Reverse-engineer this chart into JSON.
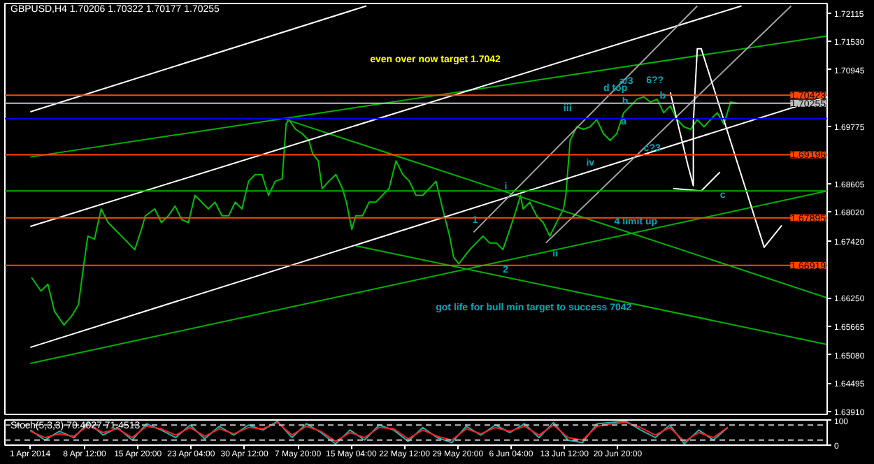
{
  "chart_data": [
    {
      "type": "line",
      "title": "GBPUSD,H4 1.70206 1.70322 1.70177 1.70255",
      "xlim": [
        "2014-03-28T12:00",
        "2014-07-19T16:00"
      ],
      "ylim": [
        1.6385,
        1.7231
      ],
      "yticks": [
        1.72115,
        {
          "value": 1.7153,
          "label": "1.71530"
        },
        1.70945,
        1.69775,
        1.68605,
        {
          "value": 1.6802,
          "label": "1.68020"
        },
        {
          "value": 1.6742,
          "label": "1.67420"
        },
        {
          "value": 1.6625,
          "label": "1.66250"
        },
        1.65665,
        {
          "value": 1.6508,
          "label": "1.65080"
        },
        1.64495,
        {
          "value": 1.6391,
          "label": "1.63910"
        }
      ],
      "tick_labels": "y",
      "grid": false,
      "series": [
        {
          "color": "#00c000",
          "x": [
            "2014-04-01T04:00",
            "2014-04-02T11:00",
            "2014-04-03T10:00",
            "2014-04-04T08:00",
            "2014-04-05T15:00",
            "2014-04-06T17:00",
            "2014-04-07T15:00",
            "2014-04-08T09:00",
            "2014-04-08T22:00",
            "2014-04-09T20:00",
            "2014-04-10T18:00",
            "2014-04-11T17:00",
            "2014-04-12T15:00",
            "2014-04-13T13:00",
            "2014-04-14T11:00",
            "2014-04-15T09:00",
            "2014-04-16T07:00",
            "2014-04-16T20:00",
            "2014-04-18T03:00",
            "2014-04-19T01:00",
            "2014-04-20T00:00",
            "2014-04-20T22:00",
            "2014-04-21T20:00",
            "2014-04-22T18:00",
            "2014-04-23T16:00",
            "2014-04-24T14:00",
            "2014-04-25T12:00",
            "2014-04-26T10:00",
            "2014-04-27T09:00",
            "2014-04-28T07:00",
            "2014-04-29T05:00",
            "2014-04-30T03:00",
            "2014-05-01T01:00",
            "2014-05-01T23:00",
            "2014-05-02T21:00",
            "2014-05-03T19:00",
            "2014-05-04T17:00",
            "2014-05-05T16:00",
            "2014-05-06T05:00",
            "2014-05-06T14:00",
            "2014-05-07T12:00",
            "2014-05-08T10:00",
            "2014-05-09T08:00",
            "2014-05-09T21:00",
            "2014-05-10T15:00",
            "2014-05-11T04:00",
            "2014-05-12T02:00",
            "2014-05-13T01:00",
            "2014-05-13T23:00",
            "2014-05-14T12:00",
            "2014-05-15T06:00",
            "2014-05-15T19:00",
            "2014-05-16T17:00",
            "2014-05-17T15:00",
            "2014-05-18T13:00",
            "2014-05-19T11:00",
            "2014-05-20T09:00",
            "2014-05-21T08:00",
            "2014-05-22T06:00",
            "2014-05-23T04:00",
            "2014-05-24T02:00",
            "2014-05-25T00:00",
            "2014-05-25T22:00",
            "2014-05-26T20:00",
            "2014-05-27T18:00",
            "2014-05-28T17:00",
            "2014-05-29T06:00",
            "2014-05-29T23:00",
            "2014-05-31T11:00",
            "2014-06-01T09:00",
            "2014-06-02T07:00",
            "2014-06-03T05:00",
            "2014-06-04T03:00",
            "2014-06-05T01:00",
            "2014-06-06T00:00",
            "2014-06-06T22:00",
            "2014-06-07T11:00",
            "2014-06-07T20:00",
            "2014-06-08T18:00",
            "2014-06-09T16:00",
            "2014-06-10T14:00",
            "2014-06-11T12:00",
            "2014-06-12T10:00",
            "2014-06-13T09:00",
            "2014-06-13T17:00",
            "2014-06-14T07:00",
            "2014-06-15T05:00",
            "2014-06-16T03:00",
            "2014-06-17T01:00",
            "2014-06-17T23:00",
            "2014-06-18T21:00",
            "2014-06-19T19:00",
            "2014-06-20T17:00",
            "2014-06-21T16:00",
            "2014-06-22T14:00",
            "2014-06-23T12:00",
            "2014-06-24T10:00",
            "2014-06-25T08:00",
            "2014-06-26T06:00",
            "2014-06-27T04:00",
            "2014-06-28T02:00",
            "2014-06-29T00:00",
            "2014-06-29T23:00",
            "2014-06-30T21:00",
            "2014-07-01T19:00",
            "2014-07-02T17:00",
            "2014-07-03T15:00",
            "2014-07-04T13:00",
            "2014-07-05T11:00",
            "2014-07-06T09:00",
            "2014-07-07T08:00"
          ],
          "values": [
            1.6667,
            1.6639,
            1.6653,
            1.6597,
            1.6569,
            1.6588,
            1.6611,
            1.6695,
            1.6752,
            1.6746,
            1.6808,
            1.678,
            1.6766,
            1.6752,
            1.6738,
            1.6724,
            1.6766,
            1.6794,
            1.6808,
            1.678,
            1.6794,
            1.6814,
            1.6786,
            1.678,
            1.6836,
            1.6822,
            1.6808,
            1.6822,
            1.6794,
            1.6794,
            1.6822,
            1.6808,
            1.6865,
            1.6879,
            1.6879,
            1.6836,
            1.6865,
            1.687,
            1.6983,
            1.6992,
            1.6972,
            1.6963,
            1.6949,
            1.6921,
            1.6907,
            1.685,
            1.6865,
            1.6879,
            1.685,
            1.6822,
            1.6766,
            1.6794,
            1.6794,
            1.6822,
            1.6822,
            1.6836,
            1.685,
            1.6907,
            1.6879,
            1.6865,
            1.6836,
            1.6836,
            1.685,
            1.6865,
            1.6808,
            1.6752,
            1.6709,
            1.6695,
            1.6724,
            1.6738,
            1.6752,
            1.6738,
            1.6738,
            1.6724,
            1.6766,
            1.6808,
            1.6836,
            1.6808,
            1.6822,
            1.6794,
            1.678,
            1.6752,
            1.678,
            1.6808,
            1.6836,
            1.6949,
            1.6977,
            1.6972,
            1.6977,
            1.6992,
            1.6963,
            1.6949,
            1.6963,
            1.7006,
            1.702,
            1.7034,
            1.7039,
            1.7028,
            1.7034,
            1.7006,
            1.702,
            1.6992,
            1.6977,
            1.6972,
            1.6992,
            1.6977,
            1.6992,
            1.7006,
            1.6983,
            1.7028,
            1.7025
          ]
        },
        {
          "color": "#00b000",
          "x": [
            "2014-04-01T00:00",
            "2014-07-19T16:00"
          ],
          "values": [
            1.6915,
            1.7164
          ]
        },
        {
          "color": "#00b000",
          "x": [
            "2014-04-01T00:00",
            "2014-07-19T16:00"
          ],
          "values": [
            1.649,
            1.6845
          ]
        },
        {
          "color": "#00b000",
          "x": [
            "2014-05-06T05:00",
            "2014-07-19T16:00"
          ],
          "values": [
            1.6992,
            1.6625
          ]
        },
        {
          "color": "#00b000",
          "x": [
            "2014-05-15T19:00",
            "2014-07-19T16:00"
          ],
          "values": [
            1.6732,
            1.6529
          ]
        },
        {
          "color": "#ffffff",
          "x": [
            "2014-04-01T00:00",
            "2014-05-17T06:00"
          ],
          "values": [
            1.7008,
            1.7226
          ]
        },
        {
          "color": "#ffffff",
          "x": [
            "2014-04-01T00:00",
            "2014-07-07T21:00"
          ],
          "values": [
            1.6772,
            1.7226
          ]
        },
        {
          "color": "#ffffff",
          "x": [
            "2014-04-01T00:00",
            "2014-07-19T16:00"
          ],
          "values": [
            1.6523,
            1.7039
          ]
        },
        {
          "color": "#a0a0a0",
          "x": [
            "2014-06-01T00:00",
            "2014-07-01T19:00"
          ],
          "values": [
            1.676,
            1.7226
          ]
        },
        {
          "color": "#a0a0a0",
          "x": [
            "2014-06-10T23:00",
            "2014-07-14T17:00"
          ],
          "values": [
            1.6738,
            1.7226
          ]
        },
        {
          "color": "#ffffff",
          "x": [
            "2014-06-28T02:00",
            "2014-06-30T12:00",
            "2014-07-01T06:00",
            "2014-07-01T06:00",
            "2014-07-01T19:00",
            "2014-07-02T08:00",
            "2014-07-11T00:00",
            "2014-07-13T10:00"
          ],
          "values": [
            1.7048,
            1.6898,
            1.6856,
            1.6986,
            1.7138,
            1.7138,
            1.6729,
            1.6774
          ]
        },
        {
          "color": "#ffffff",
          "x": [
            "2014-06-28T11:00",
            "2014-07-02T08:00",
            "2014-07-04T22:00"
          ],
          "values": [
            1.685,
            1.6845,
            1.6884
          ]
        }
      ],
      "ref_lines": [
        {
          "axis": "y",
          "value": 1.70423,
          "label": "1.70423",
          "color": "#ff4500"
        },
        {
          "axis": "y",
          "value": 1.70255,
          "label": "1.70255",
          "color": "#c0c0c0"
        },
        {
          "axis": "y",
          "value": 1.6994,
          "label": null,
          "color": "#0000ff"
        },
        {
          "axis": "y",
          "value": 1.69196,
          "label": "1.69196",
          "color": "#ff4500"
        },
        {
          "axis": "y",
          "value": 1.6845,
          "label": null,
          "color": "#00b000"
        },
        {
          "axis": "y",
          "value": 1.67895,
          "label": "1.67895",
          "color": "#ff4500"
        },
        {
          "axis": "y",
          "value": 1.66919,
          "label": "1.66919",
          "color": "#ff4500"
        }
      ],
      "annotations": [
        "even over now target 1.7042",
        "got life for bull min target to success 7042",
        "iv",
        "6??",
        {
          "text": "4 limit up",
          "x": "2014-06-20T09:00",
          "y": 1.678
        },
        {
          "text": "iii",
          "x": "2014-06-13T09:00",
          "y": 1.7014
        },
        {
          "text": "ii",
          "x": "2014-06-11T21:00",
          "y": 1.6715
        },
        {
          "text": "i",
          "x": "2014-06-05T06:00",
          "y": 1.6853
        },
        {
          "text": "1",
          "x": "2014-05-31T20:00",
          "y": 1.6786
        },
        {
          "text": "2",
          "x": "2014-06-05T01:00",
          "y": 1.6684
        },
        {
          "text": "d top",
          "x": "2014-06-18T21:00",
          "y": 1.7056
        },
        {
          "text": "a/3",
          "x": "2014-06-21T02:00",
          "y": 1.707
        },
        {
          "text": "b",
          "x": "2014-06-21T11:00",
          "y": 1.7028
        },
        {
          "text": "a",
          "x": "2014-06-21T07:00",
          "y": 1.6986
        },
        {
          "text": "b",
          "x": "2014-06-26T15:00",
          "y": 1.7039
        },
        {
          "text": "c?3",
          "x": "2014-06-24T10:00",
          "y": 1.6932
        },
        {
          "text": "c",
          "x": "2014-07-04T22:00",
          "y": 1.6836
        }
      ]
    },
    {
      "type": "line",
      "title": "Stoch(5,3,3) 70.4027 71.4513",
      "xlim": [
        "2014-03-28T12:00",
        "2014-07-19T16:00"
      ],
      "ylim": [
        0,
        100
      ],
      "xticks": [
        {
          "value": "2014-04-01T00:00",
          "label": "1 Apr 2014"
        },
        {
          "value": "2014-04-08T12:00",
          "label": "8 Apr 12:00"
        },
        {
          "value": "2014-04-15T20:00",
          "label": "15 Apr 20:00"
        },
        {
          "value": "2014-04-23T04:00",
          "label": "23 Apr 04:00"
        },
        {
          "value": "2014-04-30T12:00",
          "label": "30 Apr 12:00"
        },
        {
          "value": "2014-05-07T20:00",
          "label": "7 May 20:00"
        },
        {
          "value": "2014-05-15T04:00",
          "label": "15 May 04:00"
        },
        {
          "value": "2014-05-22T12:00",
          "label": "22 May 12:00"
        },
        {
          "value": "2014-05-29T20:00",
          "label": "29 May 20:00"
        },
        {
          "value": "2014-06-06T04:00",
          "label": "6 Jun 04:00"
        },
        {
          "value": "2014-06-13T12:00",
          "label": "13 Jun 12:00"
        },
        {
          "value": "2014-06-20T20:00",
          "label": "20 Jun 20:00"
        }
      ],
      "yticks": [
        100,
        0
      ],
      "grid": false,
      "series": [
        {
          "color": "#20b2aa",
          "x": [
            "2014-04-01",
            "2014-04-03",
            "2014-04-05",
            "2014-04-07",
            "2014-04-09",
            "2014-04-11",
            "2014-04-13",
            "2014-04-15",
            "2014-04-17",
            "2014-04-19",
            "2014-04-21",
            "2014-04-23",
            "2014-04-25",
            "2014-04-27",
            "2014-04-29",
            "2014-05-01",
            "2014-05-03",
            "2014-05-05",
            "2014-05-07",
            "2014-05-09",
            "2014-05-11",
            "2014-05-13",
            "2014-05-15",
            "2014-05-17",
            "2014-05-19",
            "2014-05-21",
            "2014-05-23",
            "2014-05-25",
            "2014-05-27",
            "2014-05-29",
            "2014-05-31",
            "2014-06-02",
            "2014-06-04",
            "2014-06-06",
            "2014-06-08",
            "2014-06-10",
            "2014-06-12",
            "2014-06-14",
            "2014-06-16",
            "2014-06-18",
            "2014-06-20",
            "2014-06-22",
            "2014-06-24",
            "2014-06-26",
            "2014-06-28",
            "2014-06-30",
            "2014-07-02",
            "2014-07-04",
            "2014-07-06"
          ],
          "values": [
            60,
            20,
            55,
            30,
            90,
            40,
            70,
            20,
            85,
            60,
            30,
            80,
            25,
            75,
            40,
            80,
            60,
            95,
            30,
            85,
            50,
            5,
            60,
            20,
            80,
            60,
            15,
            70,
            30,
            10,
            75,
            40,
            80,
            50,
            85,
            30,
            90,
            20,
            10,
            85,
            90,
            95,
            60,
            30,
            80,
            5,
            60,
            20,
            70
          ]
        },
        {
          "color": "#ff2020",
          "x": [
            "2014-04-01",
            "2014-04-03",
            "2014-04-05",
            "2014-04-07",
            "2014-04-09",
            "2014-04-11",
            "2014-04-13",
            "2014-04-15",
            "2014-04-17",
            "2014-04-19",
            "2014-04-21",
            "2014-04-23",
            "2014-04-25",
            "2014-04-27",
            "2014-04-29",
            "2014-05-01",
            "2014-05-03",
            "2014-05-05",
            "2014-05-07",
            "2014-05-09",
            "2014-05-11",
            "2014-05-13",
            "2014-05-15",
            "2014-05-17",
            "2014-05-19",
            "2014-05-21",
            "2014-05-23",
            "2014-05-25",
            "2014-05-27",
            "2014-05-29",
            "2014-05-31",
            "2014-06-02",
            "2014-06-04",
            "2014-06-06",
            "2014-06-08",
            "2014-06-10",
            "2014-06-12",
            "2014-06-14",
            "2014-06-16",
            "2014-06-18",
            "2014-06-20",
            "2014-06-22",
            "2014-06-24",
            "2014-06-26",
            "2014-06-28",
            "2014-06-30",
            "2014-07-02",
            "2014-07-04",
            "2014-07-06"
          ],
          "values": [
            55,
            30,
            45,
            35,
            80,
            50,
            65,
            30,
            75,
            65,
            40,
            70,
            35,
            65,
            45,
            70,
            65,
            90,
            40,
            75,
            55,
            15,
            50,
            30,
            70,
            65,
            25,
            60,
            35,
            20,
            65,
            45,
            70,
            55,
            75,
            40,
            80,
            30,
            20,
            75,
            85,
            90,
            70,
            40,
            70,
            15,
            50,
            30,
            71
          ]
        }
      ],
      "ref_lines": [
        {
          "axis": "y",
          "value": 80,
          "label": null,
          "color": "#c0c0c0",
          "line_style": "dashed"
        },
        {
          "axis": "y",
          "value": 20,
          "label": null,
          "color": "#c0c0c0",
          "line_style": "dashed"
        }
      ]
    }
  ]
}
